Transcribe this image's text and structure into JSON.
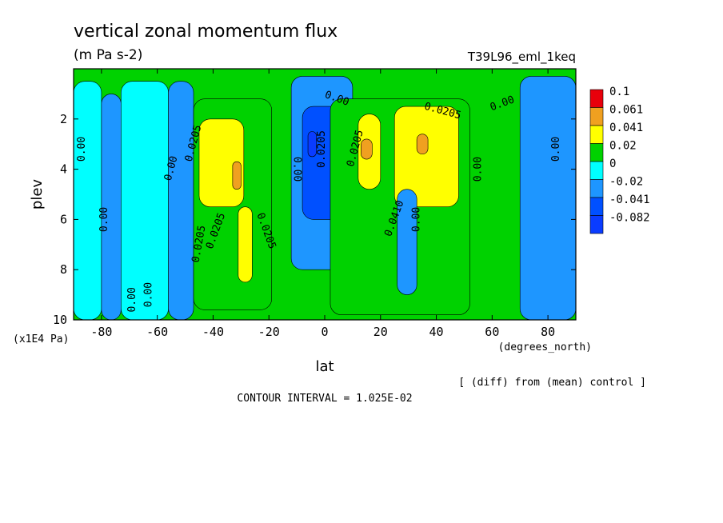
{
  "chart_data": {
    "type": "heatmap",
    "title": "vertical zonal momentum flux",
    "subtitle": "(m Pa s-2)",
    "run_label": "T39L96_eml_1keq",
    "xlabel": "lat",
    "x_unit": "(degrees_north)",
    "ylabel": "plev",
    "y_unit": "(x1E4 Pa)",
    "xlim": [
      -90,
      90
    ],
    "ylim": [
      10,
      0
    ],
    "x_ticks": [
      -80,
      -60,
      -40,
      -20,
      0,
      20,
      40,
      60,
      80
    ],
    "y_ticks": [
      2,
      4,
      6,
      8,
      10
    ],
    "note": "[ (diff) from (mean) control ]",
    "contour_interval": "CONTOUR INTERVAL = 1.025E-02",
    "contour_labels": [
      "0.00",
      "0.0205",
      "0.0410",
      "-0.0205"
    ],
    "colorbar": [
      {
        "label": "0.1",
        "color": "#e8000b"
      },
      {
        "label": "0.061",
        "color": "#f0a020"
      },
      {
        "label": "0.041",
        "color": "#ffff00"
      },
      {
        "label": "0.02",
        "color": "#00d200"
      },
      {
        "label": "0",
        "color": "#00ffff"
      },
      {
        "label": "-0.02",
        "color": "#1e96ff"
      },
      {
        "label": "-0.041",
        "color": "#0050ff"
      },
      {
        "label": "-0.082",
        "color": ""
      }
    ],
    "columns": [
      {
        "lat_range": [
          -90,
          -80
        ],
        "pressure_range": [
          0.5,
          10
        ],
        "band": "0"
      },
      {
        "lat_range": [
          -80,
          -73
        ],
        "pressure_range": [
          1,
          10
        ],
        "band": "-0.02"
      },
      {
        "lat_range": [
          -73,
          -56
        ],
        "pressure_range": [
          0.5,
          10
        ],
        "band": "0"
      },
      {
        "lat_range": [
          -56,
          -47
        ],
        "pressure_range": [
          0.5,
          10
        ],
        "band": "-0.02"
      },
      {
        "lat_range": [
          -47,
          -19
        ],
        "pressure_range": [
          1.2,
          9.6
        ],
        "band": "0.02"
      },
      {
        "lat_range": [
          -45,
          -29
        ],
        "pressure_range": [
          2,
          5.5
        ],
        "band": "0.041"
      },
      {
        "lat_range": [
          -33,
          -30
        ],
        "pressure_range": [
          3.7,
          4.8
        ],
        "band": "0.061"
      },
      {
        "lat_range": [
          -31,
          -26
        ],
        "pressure_range": [
          5.5,
          8.5
        ],
        "band": "0.041"
      },
      {
        "lat_range": [
          -12,
          10
        ],
        "pressure_range": [
          0.3,
          8
        ],
        "band": "-0.02"
      },
      {
        "lat_range": [
          -8,
          6
        ],
        "pressure_range": [
          1.5,
          6
        ],
        "band": "-0.041"
      },
      {
        "lat_range": [
          -6,
          -3
        ],
        "pressure_range": [
          2.5,
          3.5
        ],
        "band": "-0.082"
      },
      {
        "lat_range": [
          2,
          52
        ],
        "pressure_range": [
          1.2,
          9.8
        ],
        "band": "0.02"
      },
      {
        "lat_range": [
          12,
          20
        ],
        "pressure_range": [
          1.8,
          4.8
        ],
        "band": "0.041"
      },
      {
        "lat_range": [
          13,
          17
        ],
        "pressure_range": [
          2.8,
          3.6
        ],
        "band": "0.061"
      },
      {
        "lat_range": [
          25,
          48
        ],
        "pressure_range": [
          1.5,
          5.5
        ],
        "band": "0.041"
      },
      {
        "lat_range": [
          33,
          37
        ],
        "pressure_range": [
          2.6,
          3.4
        ],
        "band": "0.061"
      },
      {
        "lat_range": [
          26,
          33
        ],
        "pressure_range": [
          4.8,
          9
        ],
        "band": "-0.02"
      },
      {
        "lat_range": [
          70,
          90
        ],
        "pressure_range": [
          0.3,
          10
        ],
        "band": "-0.02"
      }
    ]
  }
}
